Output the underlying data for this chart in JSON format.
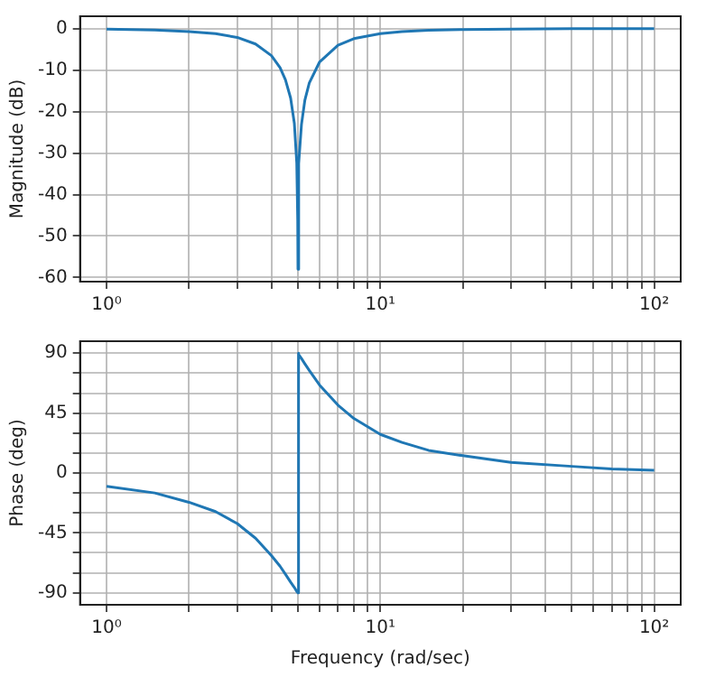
{
  "chart_data": [
    {
      "type": "line",
      "ylabel": "Magnitude (dB)",
      "log": "x",
      "grid": true,
      "marker": "none",
      "line_style": "solid",
      "tick_labels": "xy",
      "xlim": [
        0.8,
        125
      ],
      "ylim": [
        -61,
        3
      ],
      "xticks": [
        {
          "value": 1,
          "label": "10⁰"
        },
        {
          "value": 2,
          "label": null
        },
        {
          "value": 3,
          "label": null
        },
        {
          "value": 4,
          "label": null
        },
        {
          "value": 5,
          "label": null
        },
        {
          "value": 6,
          "label": null
        },
        {
          "value": 7,
          "label": null
        },
        {
          "value": 8,
          "label": null
        },
        {
          "value": 9,
          "label": null
        },
        {
          "value": 10,
          "label": "10¹"
        },
        {
          "value": 20,
          "label": null
        },
        {
          "value": 30,
          "label": null
        },
        {
          "value": 40,
          "label": null
        },
        {
          "value": 50,
          "label": null
        },
        {
          "value": 60,
          "label": null
        },
        {
          "value": 70,
          "label": null
        },
        {
          "value": 80,
          "label": null
        },
        {
          "value": 90,
          "label": null
        },
        {
          "value": 100,
          "label": "10²"
        }
      ],
      "yticks": [
        -60,
        -50,
        -40,
        -30,
        -20,
        -10,
        0
      ],
      "series": [
        {
          "color": "#1f77b4",
          "x": [
            1,
            1.5,
            2,
            2.5,
            3,
            3.5,
            4,
            4.3,
            4.5,
            4.7,
            4.85,
            4.95,
            4.99,
            5,
            5.01,
            5.05,
            5.15,
            5.3,
            5.5,
            6,
            7,
            8,
            10,
            12,
            15,
            20,
            30,
            50,
            70,
            100
          ],
          "values": [
            -0.1,
            -0.3,
            -0.7,
            -1.2,
            -2.1,
            -3.7,
            -6.5,
            -9.4,
            -12.3,
            -16.7,
            -22.8,
            -32.4,
            -46.4,
            -58,
            -46.4,
            -32.5,
            -23.1,
            -17.2,
            -13.1,
            -8,
            -4,
            -2.4,
            -1.2,
            -0.7,
            -0.4,
            -0.2,
            -0.1,
            0,
            0,
            0
          ]
        }
      ]
    },
    {
      "type": "line",
      "xlabel": "Frequency (rad/sec)",
      "ylabel": "Phase (deg)",
      "log": "x",
      "grid": true,
      "marker": "none",
      "line_style": "solid",
      "xlim": [
        0.8,
        125
      ],
      "ylim": [
        -99,
        99
      ],
      "xticks": [
        {
          "value": 1,
          "label": "10⁰"
        },
        {
          "value": 2,
          "label": null
        },
        {
          "value": 3,
          "label": null
        },
        {
          "value": 4,
          "label": null
        },
        {
          "value": 5,
          "label": null
        },
        {
          "value": 6,
          "label": null
        },
        {
          "value": 7,
          "label": null
        },
        {
          "value": 8,
          "label": null
        },
        {
          "value": 9,
          "label": null
        },
        {
          "value": 10,
          "label": "10¹"
        },
        {
          "value": 20,
          "label": null
        },
        {
          "value": 30,
          "label": null
        },
        {
          "value": 40,
          "label": null
        },
        {
          "value": 50,
          "label": null
        },
        {
          "value": 60,
          "label": null
        },
        {
          "value": 70,
          "label": null
        },
        {
          "value": 80,
          "label": null
        },
        {
          "value": 90,
          "label": null
        },
        {
          "value": 100,
          "label": "10²"
        }
      ],
      "yticks": [
        -90,
        {
          "value": -75,
          "label": null
        },
        {
          "value": -60,
          "label": null
        },
        -45,
        {
          "value": -30,
          "label": null
        },
        {
          "value": -15,
          "label": null
        },
        0,
        {
          "value": 15,
          "label": null
        },
        {
          "value": 30,
          "label": null
        },
        45,
        {
          "value": 60,
          "label": null
        },
        {
          "value": 75,
          "label": null
        },
        90
      ],
      "series": [
        {
          "color": "#1f77b4",
          "x": [
            1,
            1.5,
            2,
            2.5,
            3,
            3.5,
            4,
            4.3,
            4.5,
            4.7,
            4.85,
            4.95,
            5,
            5,
            5.05,
            5.15,
            5.3,
            5.5,
            6,
            7,
            8,
            10,
            12,
            15,
            20,
            30,
            50,
            70,
            100
          ],
          "values": [
            -10,
            -15,
            -22,
            -29,
            -38,
            -49,
            -62,
            -70,
            -76,
            -82,
            -86,
            -89,
            -90,
            90,
            89,
            86,
            82,
            77,
            66,
            51,
            41,
            29,
            23,
            17,
            13,
            8,
            5,
            3,
            2
          ]
        }
      ]
    }
  ]
}
